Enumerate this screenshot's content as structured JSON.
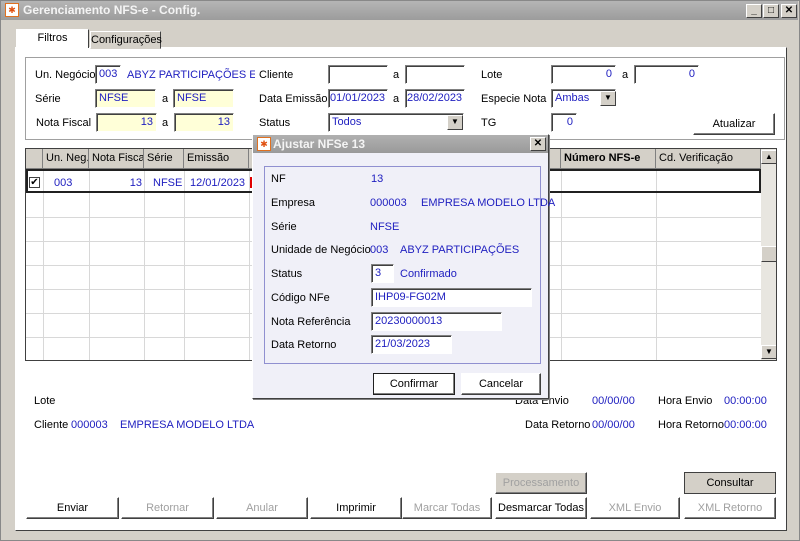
{
  "window": {
    "title": "Gerenciamento NFS-e - Config.",
    "controls": [
      "_",
      "□",
      "✕"
    ]
  },
  "tabs": [
    {
      "label": "Filtros",
      "active": true
    },
    {
      "label": "Configurações",
      "active": false
    }
  ],
  "filters": {
    "un_negocio_label": "Un. Negócio",
    "un_negocio_code": "003",
    "un_negocio_name": "ABYZ PARTICIPAÇÕES E INV",
    "serie_label": "Série",
    "serie_from": "NFSE",
    "serie_to": "NFSE",
    "nota_label": "Nota Fiscal",
    "nota_from": "13",
    "nota_to": "13",
    "cliente_label": "Cliente",
    "cliente_from": "",
    "cliente_to": "",
    "data_label": "Data Emissão",
    "data_from": "01/01/2023",
    "data_to": "28/02/2023",
    "status_label": "Status",
    "status_value": "Todos",
    "lote_label": "Lote",
    "lote_from": "0",
    "lote_to": "0",
    "especie_label": "Especie Nota",
    "especie_value": "Ambas",
    "tg_label": "TG",
    "tg_value": "0",
    "a": "a",
    "atualizar": "Atualizar"
  },
  "grid": {
    "columns": [
      "",
      "Un. Neg.",
      "Nota Fiscal",
      "Série",
      "Emissão",
      "S",
      "Número NFS-e",
      "Cd. Verificação"
    ],
    "rows": [
      {
        "checked": true,
        "un_neg": "003",
        "nota": "13",
        "serie": "NFSE",
        "emissao": "12/01/2023",
        "numero": "",
        "cd": ""
      }
    ]
  },
  "details": {
    "lote_label": "Lote",
    "cliente_label": "Cliente",
    "cliente_code": "000003",
    "cliente_name": "EMPRESA MODELO LTDA",
    "data_envio_label": "Data Envio",
    "data_envio": "00/00/00",
    "hora_envio_label": "Hora Envio",
    "hora_envio": "00:00:00",
    "data_retorno_label": "Data Retorno",
    "data_retorno": "00/00/00",
    "hora_retorno_label": "Hora Retorno",
    "hora_retorno": "00:00:00"
  },
  "buttons": {
    "processamento": "Processamento",
    "consultar": "Consultar Protocolo",
    "enviar": "Enviar",
    "retornar": "Retornar",
    "anular": "Anular",
    "imprimir": "Imprimir",
    "marcar": "Marcar Todas",
    "desmarcar": "Desmarcar Todas",
    "xml_envio": "XML Envio",
    "xml_retorno": "XML Retorno"
  },
  "dialog": {
    "title": "Ajustar NFSe 13",
    "nf_label": "NF",
    "nf": "13",
    "empresa_label": "Empresa",
    "empresa_code": "000003",
    "empresa_name": "EMPRESA MODELO LTDA",
    "serie_label": "Série",
    "serie": "NFSE",
    "unidade_label": "Unidade de Negócio",
    "unidade_code": "003",
    "unidade_name": "ABYZ PARTICIPAÇÕES",
    "status_label": "Status",
    "status_code": "3",
    "status_name": "Confirmado",
    "codigo_label": "Código NFe",
    "codigo": "IHP09-FG02M",
    "nota_ref_label": "Nota Referência",
    "nota_ref": "20230000013",
    "data_retorno_label": "Data Retorno",
    "data_retorno": "21/03/2023",
    "confirmar": "Confirmar",
    "cancelar": "Cancelar"
  },
  "colors": {
    "value_text": "#2020c0",
    "required_field": "#ffffd8",
    "status_marker": "#e00000"
  }
}
